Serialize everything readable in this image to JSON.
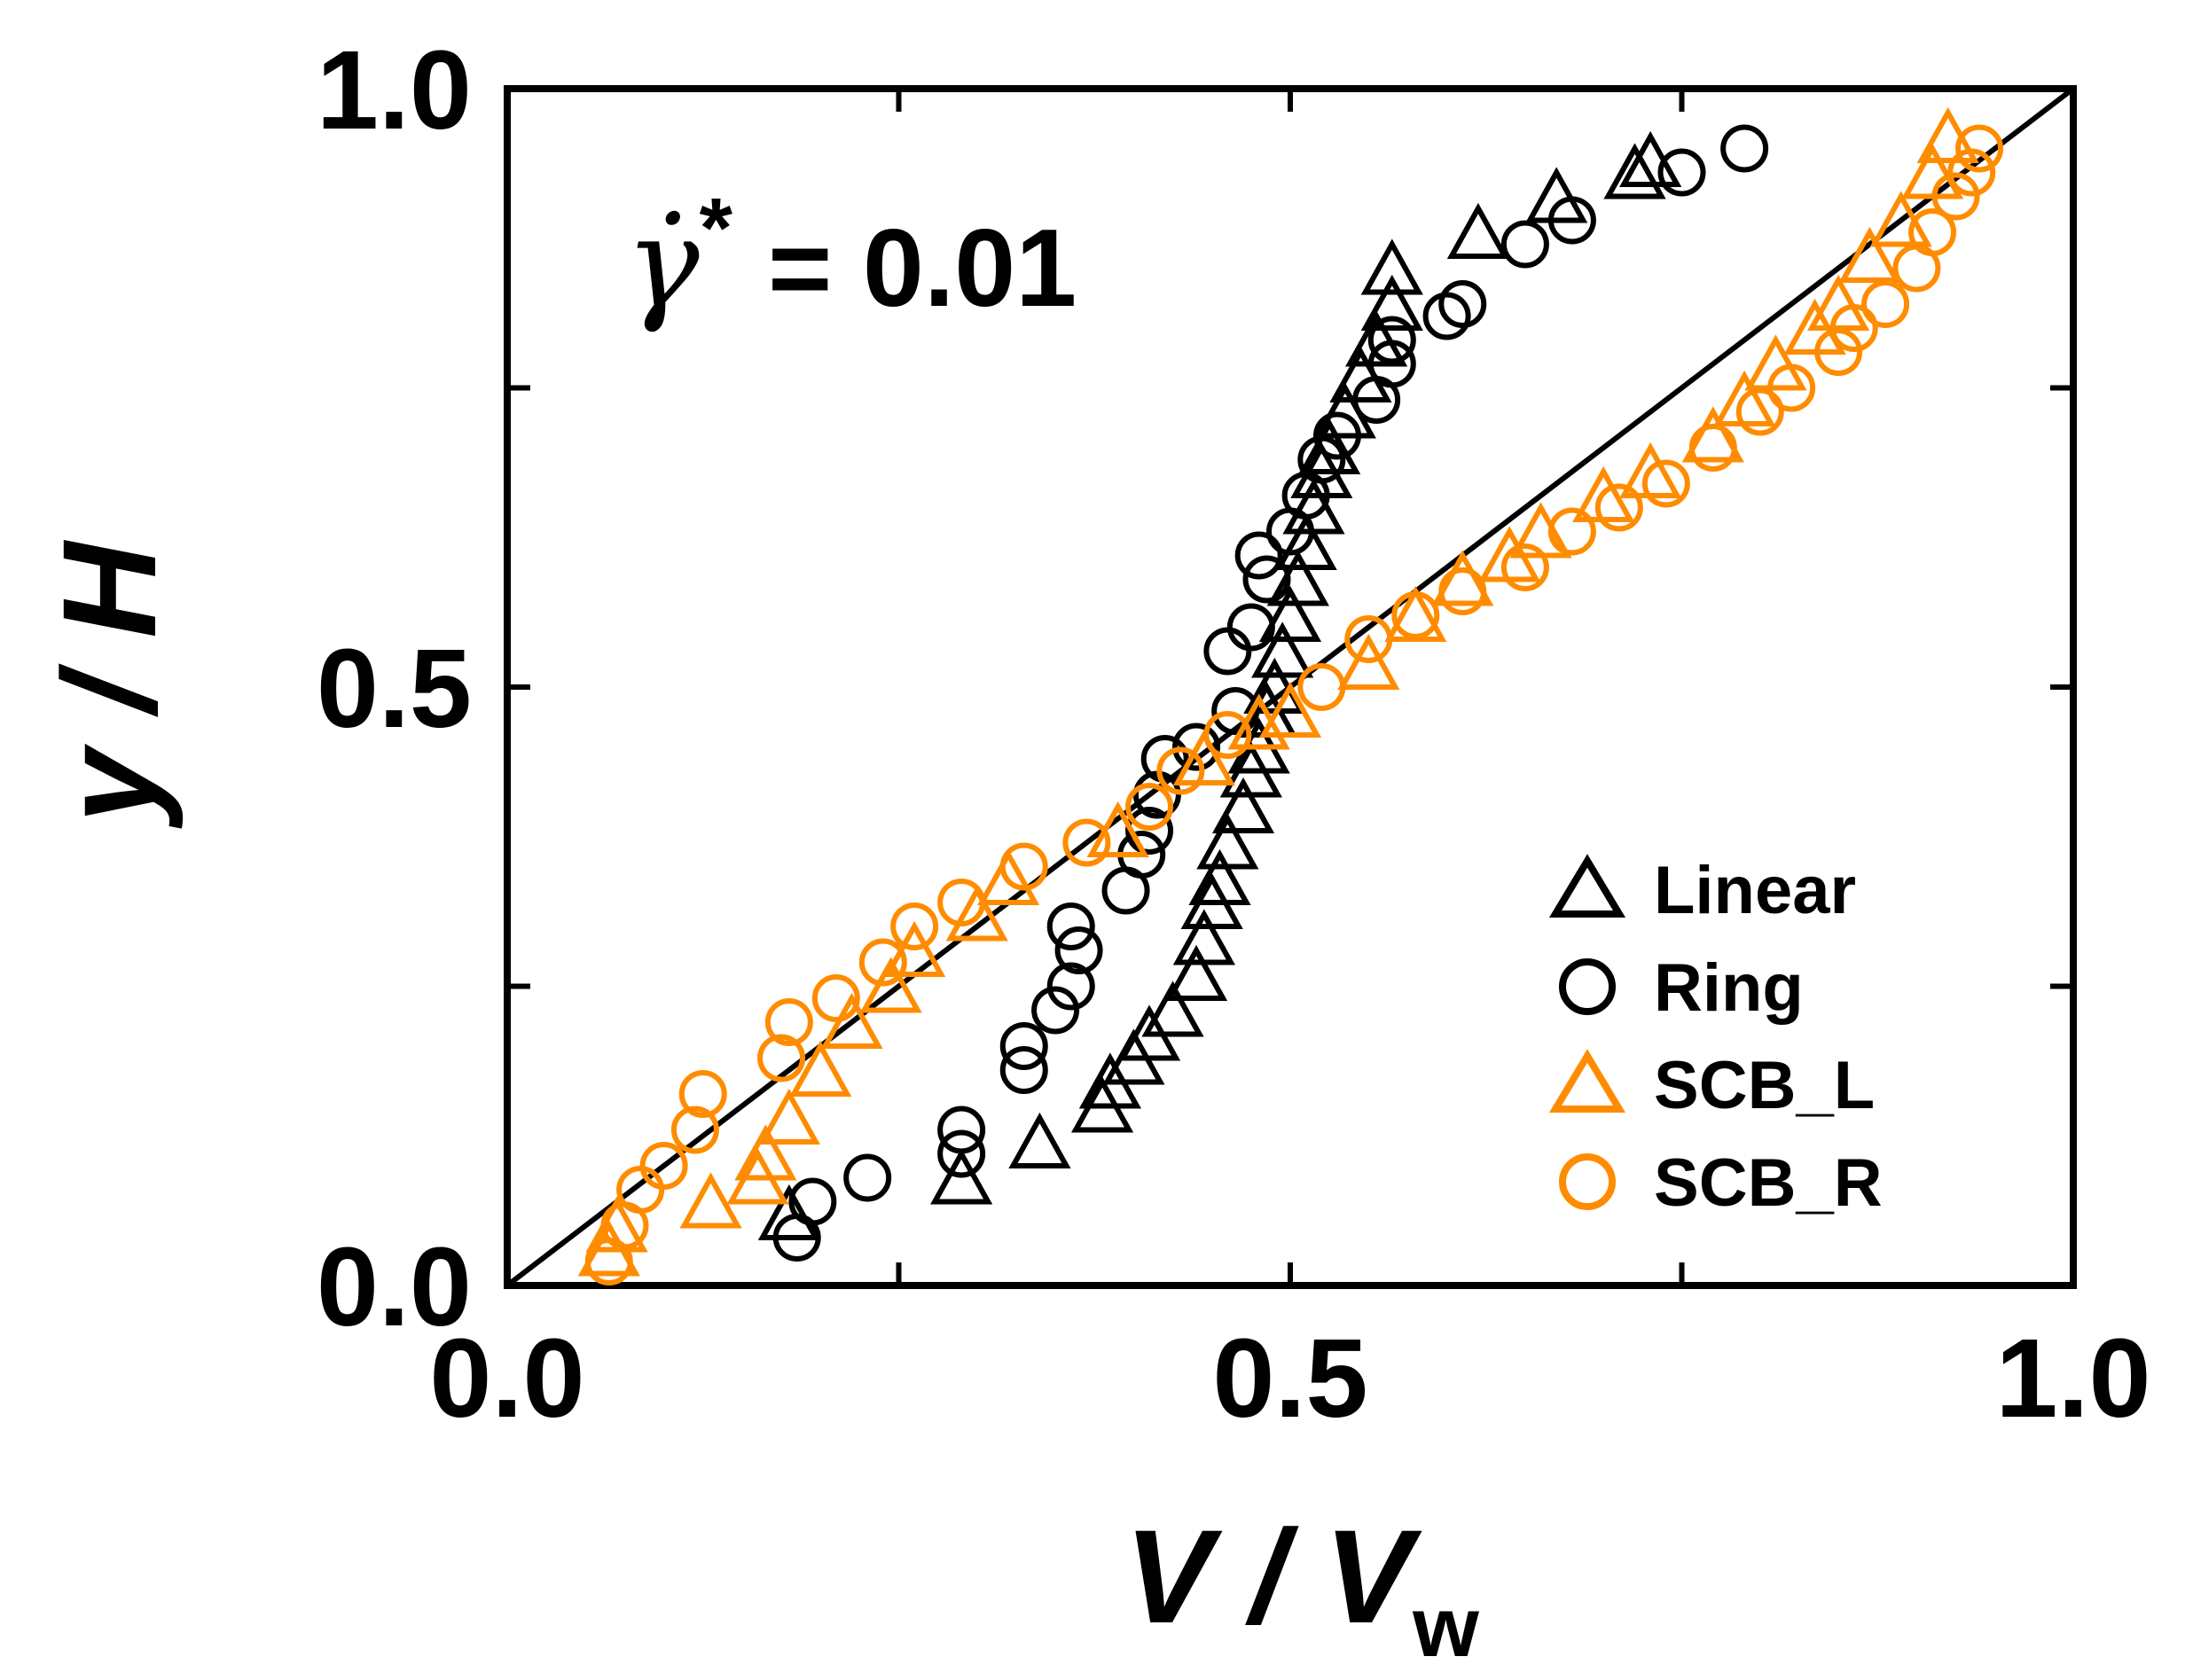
{
  "chart_data": {
    "type": "scatter",
    "title": "",
    "xlabel": {
      "main": "V / V",
      "subscript": "w"
    },
    "ylabel": "y / H",
    "xlim": [
      0.0,
      1.0
    ],
    "ylim": [
      0.0,
      1.0
    ],
    "x_tick_labels": [
      "0.0",
      "0.5",
      "1.0"
    ],
    "y_tick_labels": [
      "0.0",
      "0.5",
      "1.0"
    ],
    "x_minor_ticks": [
      0.25,
      0.75
    ],
    "y_minor_ticks": [
      0.25,
      0.75
    ],
    "grid": false,
    "annotation": {
      "symbol": "γ̇",
      "superscript": "*",
      "value": "= 0.01"
    },
    "reference_line": {
      "x": [
        0.0,
        1.0
      ],
      "y": [
        0.0,
        1.0
      ]
    },
    "legend_position": "bottom-right",
    "series": [
      {
        "name": "Linear",
        "marker": "triangle",
        "color": "#000000",
        "points": [
          [
            0.18,
            0.06
          ],
          [
            0.29,
            0.09
          ],
          [
            0.34,
            0.12
          ],
          [
            0.38,
            0.15
          ],
          [
            0.385,
            0.17
          ],
          [
            0.4,
            0.19
          ],
          [
            0.41,
            0.21
          ],
          [
            0.425,
            0.23
          ],
          [
            0.44,
            0.26
          ],
          [
            0.445,
            0.29
          ],
          [
            0.45,
            0.32
          ],
          [
            0.455,
            0.34
          ],
          [
            0.46,
            0.37
          ],
          [
            0.47,
            0.4
          ],
          [
            0.475,
            0.43
          ],
          [
            0.48,
            0.45
          ],
          [
            0.485,
            0.48
          ],
          [
            0.49,
            0.5
          ],
          [
            0.495,
            0.53
          ],
          [
            0.5,
            0.56
          ],
          [
            0.505,
            0.59
          ],
          [
            0.51,
            0.62
          ],
          [
            0.515,
            0.65
          ],
          [
            0.52,
            0.68
          ],
          [
            0.525,
            0.7
          ],
          [
            0.535,
            0.73
          ],
          [
            0.545,
            0.76
          ],
          [
            0.555,
            0.79
          ],
          [
            0.565,
            0.82
          ],
          [
            0.565,
            0.85
          ],
          [
            0.62,
            0.88
          ],
          [
            0.67,
            0.91
          ],
          [
            0.72,
            0.93
          ],
          [
            0.73,
            0.94
          ]
        ]
      },
      {
        "name": "Ring",
        "marker": "circle",
        "color": "#000000",
        "points": [
          [
            0.185,
            0.04
          ],
          [
            0.195,
            0.07
          ],
          [
            0.23,
            0.09
          ],
          [
            0.29,
            0.11
          ],
          [
            0.29,
            0.13
          ],
          [
            0.33,
            0.18
          ],
          [
            0.33,
            0.2
          ],
          [
            0.35,
            0.23
          ],
          [
            0.36,
            0.25
          ],
          [
            0.365,
            0.28
          ],
          [
            0.36,
            0.3
          ],
          [
            0.395,
            0.33
          ],
          [
            0.405,
            0.36
          ],
          [
            0.41,
            0.38
          ],
          [
            0.415,
            0.41
          ],
          [
            0.42,
            0.44
          ],
          [
            0.44,
            0.45
          ],
          [
            0.465,
            0.48
          ],
          [
            0.46,
            0.53
          ],
          [
            0.475,
            0.55
          ],
          [
            0.485,
            0.59
          ],
          [
            0.48,
            0.61
          ],
          [
            0.5,
            0.63
          ],
          [
            0.51,
            0.66
          ],
          [
            0.52,
            0.69
          ],
          [
            0.53,
            0.71
          ],
          [
            0.555,
            0.74
          ],
          [
            0.565,
            0.77
          ],
          [
            0.565,
            0.79
          ],
          [
            0.6,
            0.81
          ],
          [
            0.61,
            0.82
          ],
          [
            0.65,
            0.87
          ],
          [
            0.68,
            0.89
          ],
          [
            0.75,
            0.93
          ],
          [
            0.79,
            0.95
          ]
        ]
      },
      {
        "name": "SCB_L",
        "marker": "triangle",
        "color": "#FF8C00",
        "points": [
          [
            0.065,
            0.03
          ],
          [
            0.07,
            0.05
          ],
          [
            0.13,
            0.07
          ],
          [
            0.16,
            0.09
          ],
          [
            0.165,
            0.11
          ],
          [
            0.18,
            0.14
          ],
          [
            0.2,
            0.18
          ],
          [
            0.22,
            0.22
          ],
          [
            0.245,
            0.25
          ],
          [
            0.26,
            0.28
          ],
          [
            0.3,
            0.31
          ],
          [
            0.32,
            0.34
          ],
          [
            0.39,
            0.38
          ],
          [
            0.445,
            0.44
          ],
          [
            0.48,
            0.47
          ],
          [
            0.5,
            0.48
          ],
          [
            0.55,
            0.52
          ],
          [
            0.58,
            0.56
          ],
          [
            0.61,
            0.59
          ],
          [
            0.64,
            0.61
          ],
          [
            0.66,
            0.63
          ],
          [
            0.7,
            0.66
          ],
          [
            0.73,
            0.68
          ],
          [
            0.77,
            0.71
          ],
          [
            0.79,
            0.74
          ],
          [
            0.81,
            0.77
          ],
          [
            0.835,
            0.8
          ],
          [
            0.85,
            0.82
          ],
          [
            0.87,
            0.86
          ],
          [
            0.89,
            0.89
          ],
          [
            0.91,
            0.93
          ],
          [
            0.92,
            0.96
          ]
        ]
      },
      {
        "name": "SCB_R",
        "marker": "circle",
        "color": "#FF8C00",
        "points": [
          [
            0.065,
            0.02
          ],
          [
            0.075,
            0.05
          ],
          [
            0.085,
            0.08
          ],
          [
            0.1,
            0.1
          ],
          [
            0.12,
            0.13
          ],
          [
            0.125,
            0.16
          ],
          [
            0.175,
            0.19
          ],
          [
            0.18,
            0.22
          ],
          [
            0.21,
            0.24
          ],
          [
            0.24,
            0.27
          ],
          [
            0.26,
            0.3
          ],
          [
            0.29,
            0.32
          ],
          [
            0.33,
            0.35
          ],
          [
            0.37,
            0.37
          ],
          [
            0.41,
            0.4
          ],
          [
            0.43,
            0.43
          ],
          [
            0.46,
            0.46
          ],
          [
            0.52,
            0.5
          ],
          [
            0.55,
            0.54
          ],
          [
            0.58,
            0.56
          ],
          [
            0.61,
            0.58
          ],
          [
            0.65,
            0.6
          ],
          [
            0.68,
            0.63
          ],
          [
            0.71,
            0.65
          ],
          [
            0.74,
            0.67
          ],
          [
            0.77,
            0.7
          ],
          [
            0.8,
            0.73
          ],
          [
            0.82,
            0.75
          ],
          [
            0.85,
            0.78
          ],
          [
            0.86,
            0.8
          ],
          [
            0.88,
            0.82
          ],
          [
            0.9,
            0.85
          ],
          [
            0.91,
            0.88
          ],
          [
            0.925,
            0.91
          ],
          [
            0.935,
            0.93
          ],
          [
            0.94,
            0.95
          ]
        ]
      }
    ]
  }
}
